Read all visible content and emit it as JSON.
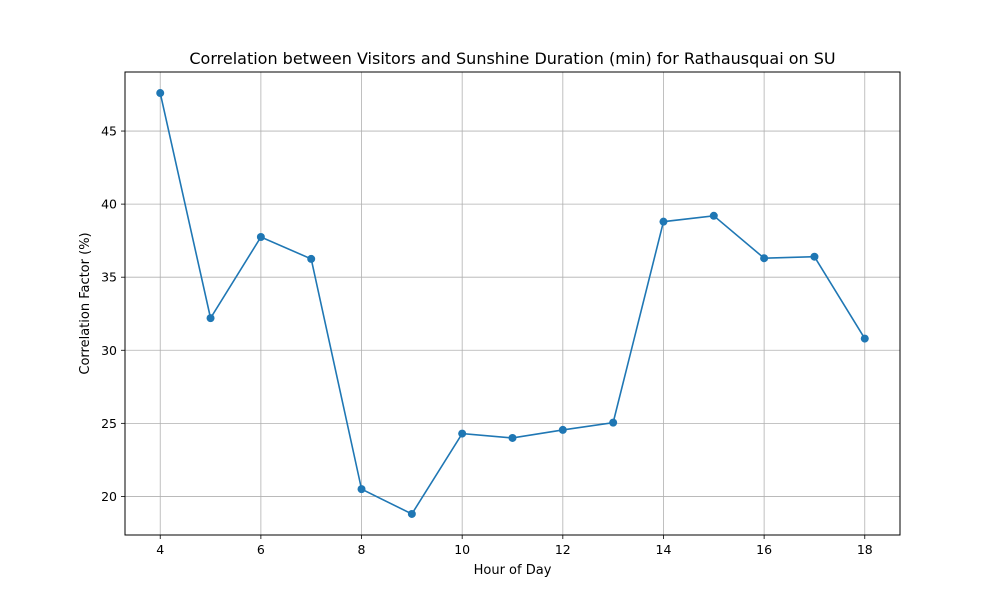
{
  "chart_data": {
    "type": "line",
    "title": "Correlation between Visitors and Sunshine Duration (min) for Rathausquai on SU",
    "xlabel": "Hour of Day",
    "ylabel": "Correlation Factor (%)",
    "x": [
      4,
      5,
      6,
      7,
      8,
      9,
      10,
      11,
      12,
      13,
      14,
      15,
      16,
      17,
      18
    ],
    "series": [
      {
        "values": [
          47.6,
          32.2,
          37.75,
          36.25,
          20.5,
          18.8,
          24.3,
          24.0,
          24.55,
          25.05,
          38.8,
          39.2,
          36.3,
          36.4,
          30.8
        ],
        "color": "#1f77b4",
        "marker": "circle"
      }
    ],
    "xlim": [
      3.3,
      18.7
    ],
    "ylim": [
      17.36,
      49.04
    ],
    "xticks": [
      4,
      6,
      8,
      10,
      12,
      14,
      16,
      18
    ],
    "yticks": [
      20,
      25,
      30,
      35,
      40,
      45
    ],
    "grid": true
  }
}
